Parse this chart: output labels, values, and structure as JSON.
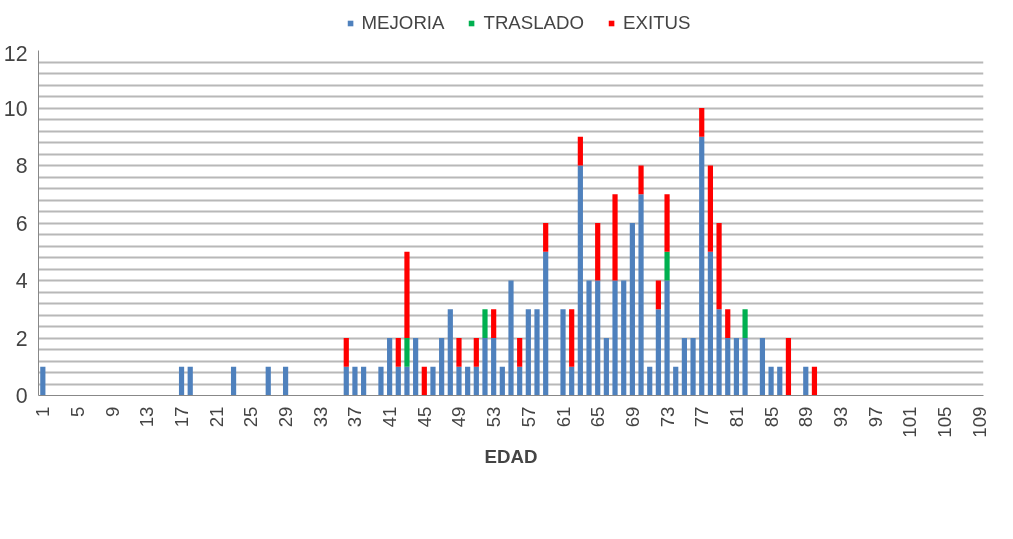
{
  "chart_data": {
    "type": "bar",
    "stacked": true,
    "xlabel": "EDAD",
    "legend": "top",
    "grid": "y",
    "categories": [
      "1",
      null,
      null,
      null,
      "5",
      null,
      null,
      null,
      "9",
      null,
      null,
      null,
      "13",
      null,
      null,
      null,
      "17",
      null,
      null,
      null,
      "21",
      null,
      null,
      null,
      "25",
      null,
      null,
      null,
      "29",
      null,
      null,
      null,
      "33",
      null,
      null,
      null,
      "37",
      null,
      null,
      null,
      "41",
      null,
      null,
      null,
      "45",
      null,
      null,
      null,
      "49",
      null,
      null,
      null,
      "53",
      null,
      null,
      null,
      "57",
      null,
      null,
      null,
      "61",
      null,
      null,
      null,
      "65",
      null,
      null,
      null,
      "69",
      null,
      null,
      null,
      "73",
      null,
      null,
      null,
      "77",
      null,
      null,
      null,
      "81",
      null,
      null,
      null,
      "85",
      null,
      null,
      null,
      "89",
      null,
      null,
      null,
      "93",
      null,
      null,
      null,
      "97",
      null,
      null,
      null,
      "101",
      null,
      null,
      null,
      "105",
      null,
      null,
      null,
      "109"
    ],
    "ylim": [
      0,
      12
    ],
    "yticks": [
      0,
      {
        "value": 0.4,
        "label": null
      },
      {
        "value": 0.8,
        "label": null
      },
      {
        "value": 1.2,
        "label": null
      },
      {
        "value": 1.6,
        "label": null
      },
      2,
      {
        "value": 2.4,
        "label": null
      },
      {
        "value": 2.8,
        "label": null
      },
      {
        "value": 3.2,
        "label": null
      },
      {
        "value": 3.6,
        "label": null
      },
      4,
      {
        "value": 4.4,
        "label": null
      },
      {
        "value": 4.8,
        "label": null
      },
      {
        "value": 5.2,
        "label": null
      },
      {
        "value": 5.6,
        "label": null
      },
      6,
      {
        "value": 6.4,
        "label": null
      },
      {
        "value": 6.8,
        "label": null
      },
      {
        "value": 7.2,
        "label": null
      },
      {
        "value": 7.6,
        "label": null
      },
      8,
      {
        "value": 8.4,
        "label": null
      },
      {
        "value": 8.8,
        "label": null
      },
      {
        "value": 9.2,
        "label": null
      },
      {
        "value": 9.6,
        "label": null
      },
      10,
      {
        "value": 10.4,
        "label": null
      },
      {
        "value": 10.8,
        "label": null
      },
      {
        "value": 11.2,
        "label": null
      },
      {
        "value": 11.6,
        "label": null
      },
      12
    ],
    "series": [
      {
        "name": "MEJORIA",
        "color": "#4f81bd",
        "values": [
          1,
          null,
          null,
          null,
          null,
          null,
          null,
          null,
          null,
          null,
          null,
          null,
          null,
          null,
          null,
          null,
          1,
          1,
          null,
          null,
          null,
          null,
          1,
          null,
          null,
          null,
          1,
          null,
          1,
          null,
          null,
          null,
          null,
          null,
          null,
          1,
          1,
          1,
          null,
          1,
          2,
          1,
          1,
          2,
          null,
          1,
          2,
          3,
          1,
          1,
          1,
          2,
          2,
          1,
          4,
          1,
          3,
          3,
          5,
          null,
          3,
          1,
          8,
          4,
          4,
          2,
          4,
          4,
          6,
          7,
          1,
          3,
          4,
          1,
          2,
          2,
          9,
          5,
          3,
          2,
          2,
          2,
          null,
          2,
          1,
          1,
          null,
          null,
          1,
          null,
          null,
          null,
          null,
          null,
          null,
          null,
          null,
          null,
          null,
          null,
          null,
          null,
          null,
          null,
          null,
          null,
          null,
          null,
          null
        ]
      },
      {
        "name": "TRASLADO",
        "color": "#00b050",
        "values": [
          null,
          null,
          null,
          null,
          null,
          null,
          null,
          null,
          null,
          null,
          null,
          null,
          null,
          null,
          null,
          null,
          null,
          null,
          null,
          null,
          null,
          null,
          null,
          null,
          null,
          null,
          null,
          null,
          null,
          null,
          null,
          null,
          null,
          null,
          null,
          null,
          null,
          null,
          null,
          null,
          null,
          null,
          1,
          null,
          null,
          null,
          null,
          null,
          null,
          null,
          null,
          1,
          null,
          null,
          null,
          null,
          null,
          null,
          null,
          null,
          null,
          null,
          null,
          null,
          null,
          null,
          null,
          null,
          null,
          null,
          null,
          null,
          1,
          null,
          null,
          null,
          null,
          null,
          null,
          null,
          null,
          1,
          null,
          null,
          null,
          null,
          null,
          null,
          null,
          null,
          null,
          null,
          null,
          null,
          null,
          null,
          null,
          null,
          null,
          null,
          null,
          null,
          null,
          null,
          null,
          null,
          null,
          null,
          null
        ]
      },
      {
        "name": "EXITUS",
        "color": "#ff0000",
        "values": [
          null,
          null,
          null,
          null,
          null,
          null,
          null,
          null,
          null,
          null,
          null,
          null,
          null,
          null,
          null,
          null,
          null,
          null,
          null,
          null,
          null,
          null,
          null,
          null,
          null,
          null,
          null,
          null,
          null,
          null,
          null,
          null,
          null,
          null,
          null,
          1,
          null,
          null,
          null,
          null,
          null,
          1,
          3,
          null,
          1,
          null,
          null,
          null,
          1,
          null,
          1,
          null,
          1,
          null,
          null,
          1,
          null,
          null,
          1,
          null,
          null,
          2,
          1,
          null,
          2,
          null,
          3,
          null,
          null,
          1,
          null,
          1,
          2,
          null,
          null,
          null,
          1,
          3,
          3,
          1,
          null,
          null,
          null,
          null,
          null,
          null,
          2,
          null,
          null,
          1,
          null,
          null,
          null,
          null,
          null,
          null,
          null,
          null,
          null,
          null,
          null,
          null,
          null,
          null,
          null,
          null,
          null,
          null,
          null
        ]
      }
    ]
  }
}
